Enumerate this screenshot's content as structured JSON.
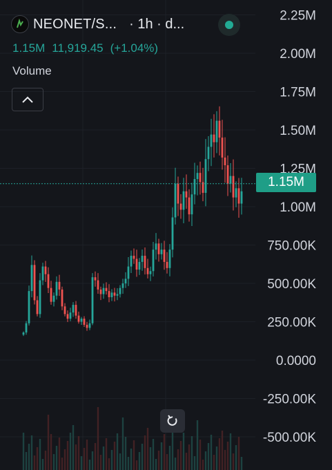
{
  "header": {
    "symbol": "NEONET/S...",
    "interval": "· 1h · d...",
    "logo_icon": "neonet-logo-icon",
    "status_icon": "market-open-dot-icon"
  },
  "quote": {
    "volume": "1.15M",
    "value": "11,919.45",
    "change": "(+1.04%)"
  },
  "pane_label": "Volume",
  "collapse_icon": "chevron-up-icon",
  "reset_icon": "reset-chart-icon",
  "current_price_label": "1.15M",
  "colors": {
    "background": "#14161b",
    "up": "#26a69a",
    "down": "#ef5350",
    "text": "#d1d4dc",
    "price_tag": "#1f9e87"
  },
  "chart_data": {
    "type": "candlestick",
    "y_ticks": [
      "2.25M",
      "2.00M",
      "1.75M",
      "1.50M",
      "1.25M",
      "1.00M",
      "750.00K",
      "500.00K",
      "250.00K",
      "0.0000",
      "-250.00K",
      "-500.00K"
    ],
    "y_tick_values": [
      2250000,
      2000000,
      1750000,
      1500000,
      1250000,
      1000000,
      750000,
      500000,
      250000,
      0,
      -250000,
      -500000
    ],
    "current_value": 1150000,
    "grid": true,
    "series_close": [
      180000,
      240000,
      450000,
      620000,
      390000,
      300000,
      520000,
      610000,
      560000,
      470000,
      380000,
      420000,
      510000,
      460000,
      350000,
      300000,
      270000,
      310000,
      360000,
      290000,
      250000,
      270000,
      230000,
      210000,
      240000,
      540000,
      520000,
      460000,
      430000,
      470000,
      450000,
      410000,
      440000,
      420000,
      430000,
      470000,
      500000,
      530000,
      610000,
      680000,
      660000,
      590000,
      640000,
      680000,
      600000,
      560000,
      580000,
      720000,
      760000,
      690000,
      720000,
      640000,
      600000,
      720000,
      930000,
      1150000,
      1020000,
      980000,
      1100000,
      1060000,
      950000,
      1080000,
      1180000,
      1220000,
      1160000,
      1090000,
      1310000,
      1390000,
      1470000,
      1420000,
      1560000,
      1450000,
      1320000,
      1270000,
      1150000,
      1200000,
      1060000,
      1120000,
      1020000,
      1100000
    ]
  }
}
